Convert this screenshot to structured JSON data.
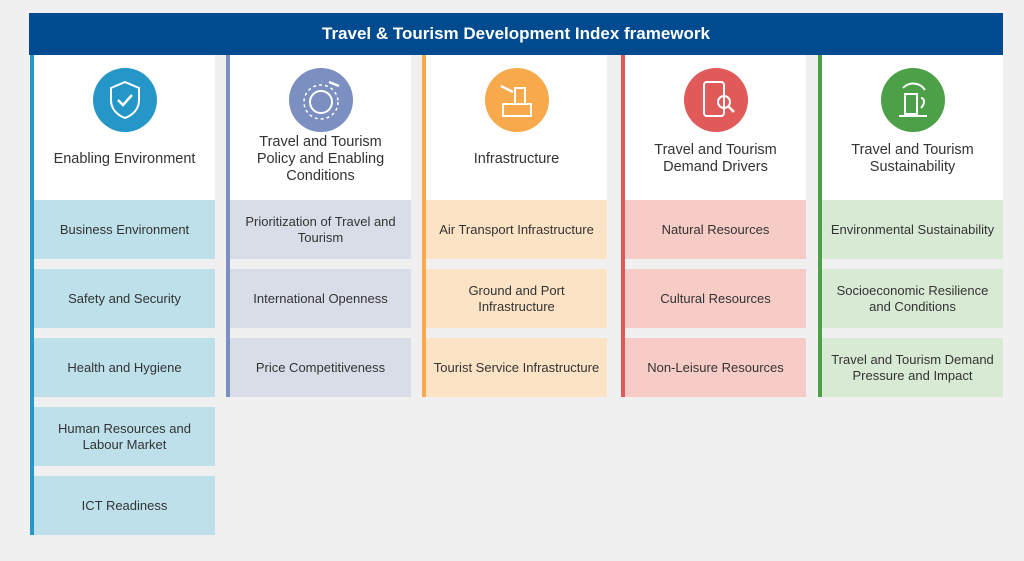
{
  "title": "Travel & Tourism Development Index framework",
  "columns": [
    {
      "title": "Enabling Environment",
      "icon": "shield-check-icon",
      "accent": "#2596c8",
      "cell_color": "#bde0ea",
      "items": [
        "Business Environment",
        "Safety and Security",
        "Health and Hygiene",
        "Human Resources and Labour Market",
        "ICT Readiness"
      ]
    },
    {
      "title": "Travel and Tourism Policy and Enabling Conditions",
      "icon": "globe-plane-icon",
      "accent": "#7b8fc0",
      "cell_color": "#d9dde8",
      "items": [
        "Prioritization of Travel and Tourism",
        "International Openness",
        "Price Competitiveness"
      ]
    },
    {
      "title": "Infrastructure",
      "icon": "airport-icon",
      "accent": "#f7a94b",
      "cell_color": "#fde3c5",
      "items": [
        "Air Transport Infrastructure",
        "Ground and Port Infrastructure",
        "Tourist Service Infrastructure"
      ]
    },
    {
      "title": "Travel and Tourism Demand Drivers",
      "icon": "phone-search-icon",
      "accent": "#e05a5a",
      "cell_color": "#f8ccc6",
      "items": [
        "Natural Resources",
        "Cultural Resources",
        "Non-Leisure Resources"
      ]
    },
    {
      "title": "Travel and Tourism Sustainability",
      "icon": "recycle-building-icon",
      "accent": "#4ca048",
      "cell_color": "#d8ead3",
      "items": [
        "Environmental Sustainability",
        "Socioeconomic Resilience and Conditions",
        "Travel and Tourism Demand Pressure and Impact"
      ]
    }
  ]
}
